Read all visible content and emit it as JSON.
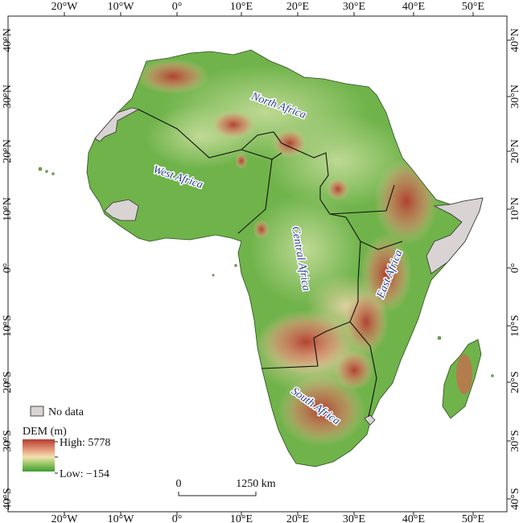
{
  "map": {
    "axes": {
      "top_ticks": [
        "20°W",
        "10°W",
        "0°",
        "10°E",
        "20°E",
        "30°E",
        "40°E",
        "50°E"
      ],
      "bottom_ticks": [
        "20°W",
        "10°W",
        "0°",
        "10°E",
        "20°E",
        "30°E",
        "40°E",
        "50°E"
      ],
      "left_ticks": [
        "40°N",
        "30°N",
        "20°N",
        "10°N",
        "0°",
        "10°S",
        "20°S",
        "30°S",
        "40°S"
      ],
      "right_ticks": [
        "40°N",
        "30°N",
        "20°N",
        "10°N",
        "0°",
        "10°S",
        "20°S",
        "30°S",
        "40°S"
      ]
    },
    "regions": [
      {
        "name": "North Africa"
      },
      {
        "name": "West Africa"
      },
      {
        "name": "Central Africa"
      },
      {
        "name": "East Africa"
      },
      {
        "name": "South Africa"
      }
    ],
    "legend": {
      "nodata_label": "No data",
      "dem_title": "DEM (m)",
      "high_label": "High: 5778",
      "low_label": "Low: −154",
      "colors": {
        "high": "#b73a2f",
        "mid": "#f3e1ae",
        "low": "#3f9b2f",
        "nodata": "#d9d3d3"
      }
    },
    "scalebar": {
      "start_label": "0",
      "end_label": "1250 km"
    }
  }
}
